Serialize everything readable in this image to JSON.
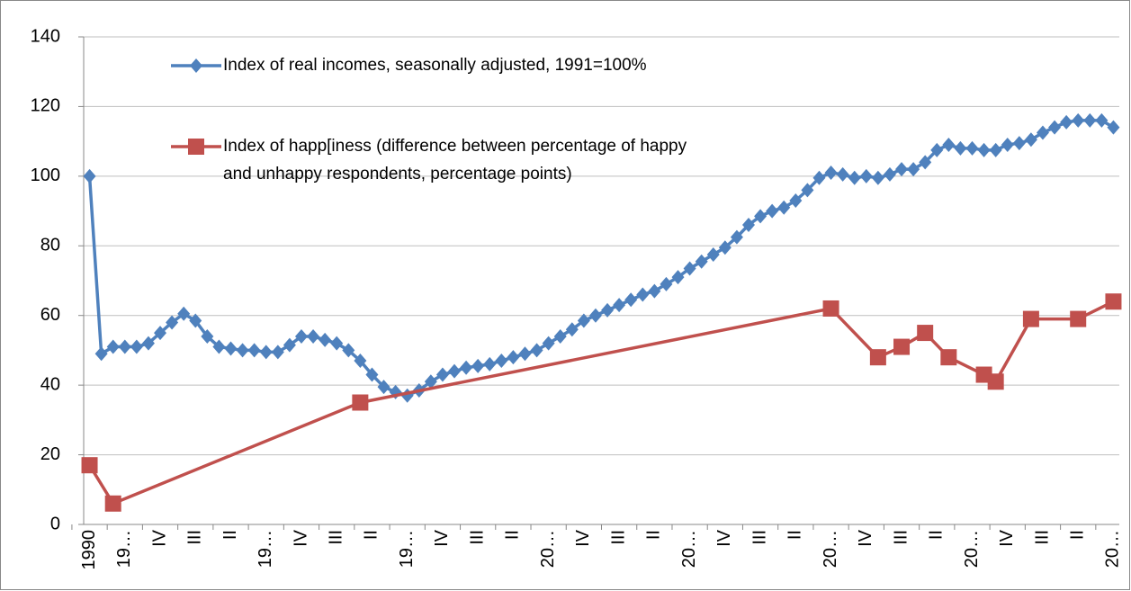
{
  "chart_data": {
    "type": "line",
    "categories": [
      "1990",
      null,
      null,
      "19…",
      null,
      null,
      "IV",
      null,
      null,
      "III",
      null,
      null,
      "II",
      null,
      null,
      "19…",
      null,
      null,
      "IV",
      null,
      null,
      "III",
      null,
      null,
      "II",
      null,
      null,
      "19…",
      null,
      null,
      "IV",
      null,
      null,
      "III",
      null,
      null,
      "II",
      null,
      null,
      "20…",
      null,
      null,
      "IV",
      null,
      null,
      "III",
      null,
      null,
      "II",
      null,
      null,
      "20…",
      null,
      null,
      "IV",
      null,
      null,
      "III",
      null,
      null,
      "II",
      null,
      null,
      "20…",
      null,
      null,
      "IV",
      null,
      null,
      "III",
      null,
      null,
      "II",
      null,
      null,
      "20…",
      null,
      null,
      "IV",
      null,
      null,
      "III",
      null,
      null,
      "II",
      null,
      null,
      "20…"
    ],
    "series": [
      {
        "name": "Index of real incomes, seasonally adjusted, 1991=100%",
        "color": "#4f81bd",
        "marker": "diamond",
        "values": [
          100,
          49,
          51,
          51,
          51,
          52,
          55,
          58,
          60.5,
          58.5,
          54,
          51,
          50.5,
          50,
          50,
          49.5,
          49.5,
          51.5,
          54,
          54,
          53,
          52,
          50,
          47,
          43,
          39.5,
          38,
          37,
          38.5,
          41,
          43,
          44,
          45,
          45.5,
          46,
          47,
          48,
          49,
          50,
          52,
          54,
          56,
          58.5,
          60,
          61.5,
          63,
          64.5,
          66,
          67,
          69,
          71,
          73.5,
          75.5,
          77.5,
          79.5,
          82.5,
          86,
          88.5,
          90,
          91,
          93,
          96,
          99.5,
          101,
          100.5,
          99.5,
          100,
          99.5,
          100.5,
          102,
          102,
          104,
          107.5,
          109,
          108,
          108,
          107.5,
          107.5,
          109,
          109.5,
          110.5,
          112.5,
          114,
          115.5,
          116,
          116,
          116,
          114
        ]
      },
      {
        "name": "Index of happ[iness (difference between percentage of happy and unhappy respondents, percentage points)",
        "color": "#c0504d",
        "marker": "square",
        "values": [
          17,
          null,
          6,
          null,
          null,
          null,
          null,
          null,
          null,
          null,
          null,
          null,
          null,
          null,
          null,
          null,
          null,
          null,
          null,
          null,
          null,
          null,
          null,
          35,
          null,
          null,
          null,
          null,
          null,
          null,
          null,
          null,
          null,
          null,
          null,
          null,
          null,
          null,
          null,
          null,
          null,
          null,
          null,
          null,
          null,
          null,
          null,
          null,
          null,
          null,
          null,
          null,
          null,
          null,
          null,
          null,
          null,
          null,
          null,
          null,
          null,
          null,
          null,
          62,
          null,
          null,
          null,
          48,
          null,
          51,
          null,
          55,
          null,
          48,
          null,
          null,
          43,
          41,
          null,
          null,
          59,
          null,
          null,
          null,
          59,
          null,
          null,
          64
        ]
      }
    ],
    "span_gaps": true,
    "ylim": [
      0,
      140
    ],
    "yticks": [
      0,
      20,
      40,
      60,
      80,
      100,
      120,
      140
    ],
    "grid": true,
    "legend": "top-left"
  }
}
